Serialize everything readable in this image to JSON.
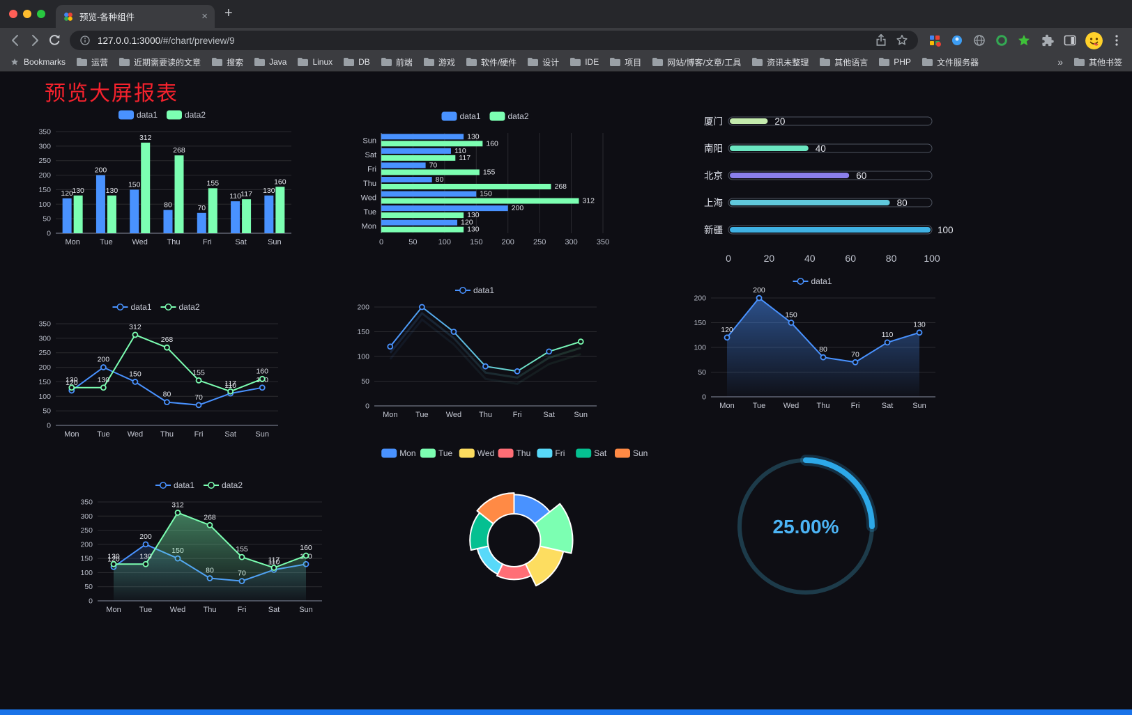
{
  "window": {
    "tab_title": "预览-各种组件",
    "url": "127.0.0.1:3000/#/chart/preview/9",
    "url_host": "127.0.0.1:3000",
    "url_path": "/#/chart/preview/9",
    "new_tab_glyph": "+",
    "tab_close_glyph": "×"
  },
  "bookmarks_bar": {
    "label": "Bookmarks",
    "folders": [
      "运营",
      "近期需要读的文章",
      "搜索",
      "Java",
      "Linux",
      "DB",
      "前端",
      "游戏",
      "软件/硬件",
      "设计",
      "IDE",
      "项目",
      "网站/博客/文章/工具",
      "资讯未整理",
      "其他语言",
      "PHP",
      "文件服务器"
    ],
    "overflow": "»",
    "other_bookmarks": "其他书签"
  },
  "page": {
    "title": "预览大屏报表",
    "title_color": "#f5222d",
    "accent_bottom_bar": "#1a73e8"
  },
  "chart_data": [
    {
      "id": "grouped-bar",
      "type": "bar",
      "categories": [
        "Mon",
        "Tue",
        "Wed",
        "Thu",
        "Fri",
        "Sat",
        "Sun"
      ],
      "series": [
        {
          "name": "data1",
          "color": "#4992ff",
          "values": [
            120,
            200,
            150,
            80,
            70,
            110,
            130
          ]
        },
        {
          "name": "data2",
          "color": "#7cffb2",
          "values": [
            130,
            130,
            312,
            268,
            155,
            117,
            160
          ]
        }
      ],
      "ylim": [
        0,
        350
      ],
      "yticks": [
        0,
        50,
        100,
        150,
        200,
        250,
        300,
        350
      ],
      "value_labels": true,
      "legend_position": "top-center",
      "grid": true
    },
    {
      "id": "horizontal-bar",
      "type": "bar-horizontal",
      "categories": [
        "Mon",
        "Tue",
        "Wed",
        "Thu",
        "Fri",
        "Sat",
        "Sun"
      ],
      "series": [
        {
          "name": "data1",
          "color": "#4992ff",
          "values": [
            120,
            200,
            150,
            80,
            70,
            110,
            130
          ]
        },
        {
          "name": "data2",
          "color": "#7cffb2",
          "values": [
            130,
            130,
            312,
            268,
            155,
            117,
            160
          ]
        }
      ],
      "xlim": [
        0,
        350
      ],
      "xticks": [
        0,
        50,
        100,
        150,
        200,
        250,
        300,
        350
      ],
      "value_labels": true,
      "legend_position": "top-center",
      "grid": true
    },
    {
      "id": "capsule-progress",
      "type": "capsule-bar",
      "categories": [
        "厦门",
        "南阳",
        "北京",
        "上海",
        "新疆"
      ],
      "values": [
        20,
        40,
        60,
        80,
        100
      ],
      "colors": [
        "#c4ebad",
        "#6be6c1",
        "#8a7fec",
        "#60c8dc",
        "#3fb1e3"
      ],
      "xlim": [
        0,
        100
      ],
      "xticks": [
        0,
        20,
        40,
        60,
        80,
        100
      ]
    },
    {
      "id": "dual-line",
      "type": "line",
      "categories": [
        "Mon",
        "Tue",
        "Wed",
        "Thu",
        "Fri",
        "Sat",
        "Sun"
      ],
      "series": [
        {
          "name": "data1",
          "color": "#4992ff",
          "values": [
            120,
            200,
            150,
            80,
            70,
            110,
            130
          ]
        },
        {
          "name": "data2",
          "color": "#7cffb2",
          "values": [
            130,
            130,
            312,
            268,
            155,
            117,
            160
          ]
        }
      ],
      "ylim": [
        0,
        350
      ],
      "yticks": [
        0,
        50,
        100,
        150,
        200,
        250,
        300,
        350
      ],
      "value_labels": true,
      "legend_position": "top-center",
      "grid": true
    },
    {
      "id": "gradient-line",
      "type": "line",
      "categories": [
        "Mon",
        "Tue",
        "Wed",
        "Thu",
        "Fri",
        "Sat",
        "Sun"
      ],
      "series": [
        {
          "name": "data1",
          "color": "#4992ff",
          "gradient": [
            "#4992ff",
            "#7cffb2"
          ],
          "echo": true,
          "values": [
            120,
            200,
            150,
            80,
            70,
            110,
            130
          ]
        }
      ],
      "ylim": [
        0,
        200
      ],
      "yticks": [
        0,
        50,
        100,
        150,
        200
      ],
      "value_labels": false,
      "legend_position": "top-center",
      "grid": true
    },
    {
      "id": "area-line",
      "type": "line",
      "categories": [
        "Mon",
        "Tue",
        "Wed",
        "Thu",
        "Fri",
        "Sat",
        "Sun"
      ],
      "series": [
        {
          "name": "data1",
          "color": "#4992ff",
          "area": true,
          "area_opacity": 0.5,
          "values": [
            120,
            200,
            150,
            80,
            70,
            110,
            130
          ]
        }
      ],
      "ylim": [
        0,
        200
      ],
      "yticks": [
        0,
        50,
        100,
        150,
        200
      ],
      "value_labels": true,
      "legend_position": "top-center",
      "grid": true
    },
    {
      "id": "dual-area-line",
      "type": "line",
      "categories": [
        "Mon",
        "Tue",
        "Wed",
        "Thu",
        "Fri",
        "Sat",
        "Sun"
      ],
      "series": [
        {
          "name": "data1",
          "color": "#4992ff",
          "area": true,
          "area_opacity": 0.18,
          "values": [
            120,
            200,
            150,
            80,
            70,
            110,
            130
          ]
        },
        {
          "name": "data2",
          "color": "#7cffb2",
          "area": true,
          "area_opacity": 0.45,
          "values": [
            130,
            130,
            312,
            268,
            155,
            117,
            160
          ]
        }
      ],
      "ylim": [
        0,
        350
      ],
      "yticks": [
        0,
        50,
        100,
        150,
        200,
        250,
        300,
        350
      ],
      "value_labels": true,
      "legend_position": "top-center",
      "grid": true
    },
    {
      "id": "rose-pie",
      "type": "pie-rose",
      "categories": [
        "Mon",
        "Tue",
        "Wed",
        "Thu",
        "Fri",
        "Sat",
        "Sun"
      ],
      "values": [
        120,
        200,
        150,
        80,
        70,
        110,
        130
      ],
      "colors": [
        "#4992ff",
        "#7cffb2",
        "#fddd60",
        "#ff6e76",
        "#58d9f9",
        "#05c091",
        "#ff8a45"
      ],
      "legend_position": "top-center"
    },
    {
      "id": "gauge",
      "type": "gauge",
      "value": 25,
      "label": "25.00%",
      "color": "#2da8e8",
      "track_color": "#1d3b4a",
      "text_color": "#4cb4f5"
    }
  ]
}
